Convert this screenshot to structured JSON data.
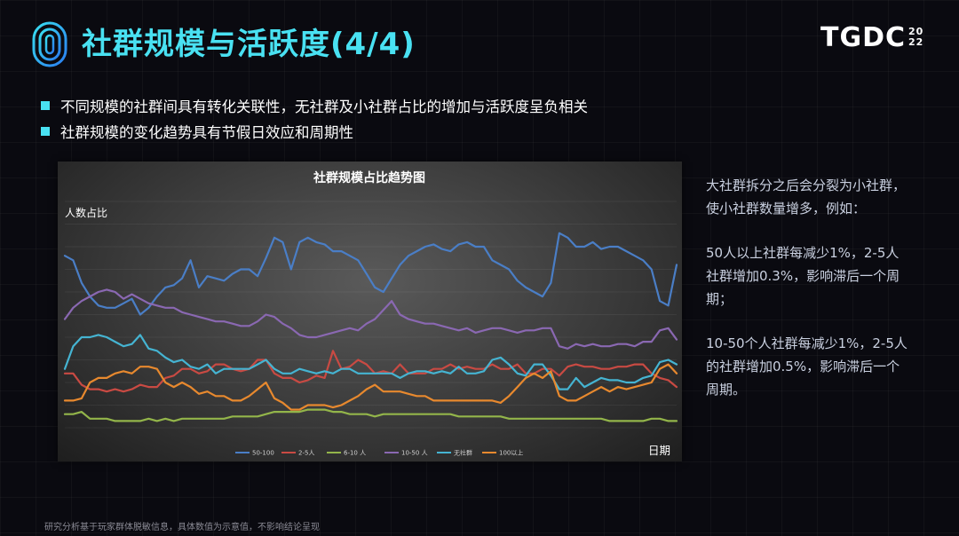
{
  "header": {
    "title": "社群规模与活跃度(4/4)",
    "brand": "TGDC",
    "brand_year_top": "20",
    "brand_year_bottom": "22"
  },
  "bullets": [
    {
      "text": "不同规模的社群间具有转化关联性，无社群及小社群占比的增加与活跃度呈负相关"
    },
    {
      "text": "社群规模的变化趋势具有节假日效应和周期性"
    }
  ],
  "side_notes": [
    "大社群拆分之后会分裂为小社群，使小社群数量增多，例如：",
    "50人以上社群每减少1%，2-5人社群增加0.3%，影响滞后一个周期；",
    "10-50个人社群每减少1%，2-5人的社群增加0.5%，影响滞后一个周期。"
  ],
  "footnote": "研究分析基于玩家群体脱敏信息，具体数值为示意值，不影响结论呈现",
  "chart_data": {
    "type": "line",
    "title": "社群规模占比趋势图",
    "ylabel": "人数占比",
    "xlabel": "日期",
    "ylim": [
      0,
      100
    ],
    "grid": true,
    "legend_position": "bottom",
    "background": "dark-gradient",
    "series": [
      {
        "name": "50-100",
        "color": "#4a7ec6",
        "values": [
          76,
          74,
          64,
          58,
          54,
          53,
          53,
          55,
          57,
          50,
          53,
          58,
          62,
          63,
          66,
          74,
          62,
          67,
          66,
          65,
          68,
          70,
          70,
          67,
          75,
          84,
          82,
          70,
          82,
          84,
          82,
          81,
          78,
          78,
          76,
          74,
          68,
          62,
          60,
          66,
          72,
          76,
          78,
          80,
          81,
          79,
          78,
          81,
          82,
          80,
          80,
          74,
          72,
          70,
          65,
          62,
          60,
          58,
          64,
          86,
          84,
          80,
          80,
          82,
          79,
          80,
          80,
          78,
          76,
          74,
          70,
          56,
          54,
          72
        ]
      },
      {
        "name": "2-5人",
        "color": "#c94a43",
        "values": [
          24,
          24,
          19,
          17,
          17,
          16,
          17,
          16,
          17,
          19,
          18,
          18,
          22,
          23,
          26,
          26,
          24,
          25,
          28,
          28,
          26,
          25,
          26,
          30,
          30,
          24,
          22,
          22,
          20,
          21,
          23,
          22,
          34,
          26,
          27,
          30,
          28,
          24,
          25,
          24,
          28,
          24,
          24,
          24,
          26,
          26,
          28,
          26,
          27,
          26,
          26,
          28,
          26,
          26,
          28,
          24,
          24,
          26,
          26,
          23,
          27,
          28,
          27,
          27,
          26,
          26,
          27,
          27,
          28,
          28,
          24,
          22,
          21,
          18
        ]
      },
      {
        "name": "6-10 人",
        "color": "#93b54a",
        "values": [
          6,
          6,
          7,
          4,
          4,
          4,
          3,
          3,
          3,
          3,
          4,
          3,
          4,
          3,
          4,
          4,
          4,
          4,
          4,
          4,
          5,
          5,
          5,
          5,
          6,
          7,
          7,
          7,
          7,
          8,
          8,
          8,
          7,
          7,
          6,
          6,
          6,
          5,
          6,
          6,
          6,
          6,
          6,
          6,
          6,
          6,
          6,
          5,
          5,
          5,
          5,
          5,
          5,
          4,
          4,
          4,
          4,
          4,
          4,
          4,
          4,
          4,
          4,
          4,
          4,
          3,
          3,
          3,
          3,
          3,
          4,
          4,
          3,
          3
        ]
      },
      {
        "name": "10-50 人",
        "color": "#8a68b2",
        "values": [
          48,
          53,
          56,
          58,
          60,
          61,
          60,
          57,
          59,
          57,
          55,
          54,
          53,
          53,
          51,
          50,
          49,
          48,
          47,
          47,
          46,
          45,
          45,
          47,
          50,
          49,
          46,
          44,
          41,
          40,
          40,
          41,
          42,
          43,
          44,
          43,
          46,
          48,
          52,
          56,
          50,
          48,
          47,
          46,
          46,
          45,
          44,
          43,
          44,
          42,
          43,
          44,
          44,
          43,
          42,
          43,
          43,
          44,
          44,
          36,
          35,
          37,
          36,
          37,
          36,
          36,
          37,
          37,
          36,
          38,
          38,
          43,
          44,
          39
        ]
      },
      {
        "name": "无社群",
        "color": "#45b4d2",
        "values": [
          26,
          36,
          40,
          40,
          41,
          40,
          38,
          36,
          37,
          41,
          35,
          34,
          31,
          29,
          30,
          27,
          26,
          28,
          24,
          26,
          26,
          26,
          26,
          28,
          30,
          26,
          24,
          24,
          26,
          25,
          24,
          25,
          24,
          26,
          26,
          24,
          24,
          24,
          24,
          24,
          22,
          24,
          25,
          25,
          24,
          25,
          24,
          27,
          24,
          24,
          25,
          30,
          31,
          28,
          24,
          23,
          28,
          28,
          23,
          17,
          17,
          22,
          18,
          20,
          22,
          21,
          21,
          20,
          20,
          22,
          23,
          29,
          30,
          28
        ]
      },
      {
        "name": "100以上",
        "color": "#e8892e",
        "values": [
          12,
          12,
          13,
          20,
          22,
          22,
          24,
          25,
          24,
          27,
          27,
          26,
          20,
          18,
          20,
          18,
          15,
          16,
          14,
          14,
          12,
          12,
          14,
          17,
          20,
          13,
          11,
          8,
          8,
          10,
          10,
          10,
          9,
          10,
          12,
          14,
          17,
          19,
          16,
          16,
          16,
          15,
          14,
          14,
          12,
          12,
          12,
          12,
          12,
          12,
          12,
          12,
          11,
          14,
          18,
          22,
          24,
          22,
          25,
          14,
          12,
          12,
          14,
          16,
          18,
          16,
          18,
          17,
          18,
          19,
          20,
          26,
          28,
          24
        ]
      }
    ]
  }
}
